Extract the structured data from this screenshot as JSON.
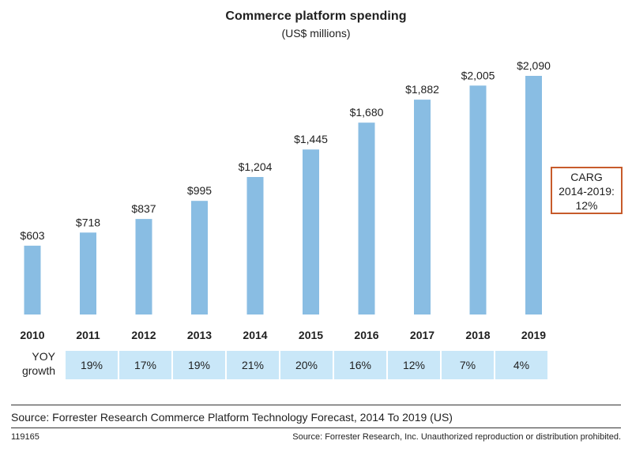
{
  "chart_data": {
    "type": "bar",
    "title": "Commerce platform spending",
    "subtitle": "(US$ millions)",
    "categories": [
      "2010",
      "2011",
      "2012",
      "2013",
      "2014",
      "2015",
      "2016",
      "2017",
      "2018",
      "2019"
    ],
    "values": [
      603,
      718,
      837,
      995,
      1204,
      1445,
      1680,
      1882,
      2005,
      2090
    ],
    "value_labels": [
      "$603",
      "$718",
      "$837",
      "$995",
      "$1,204",
      "$1,445",
      "$1,680",
      "$1,882",
      "$2,005",
      "$2,090"
    ],
    "ylim": [
      0,
      2090
    ],
    "bar_color": "#89bde3",
    "grid": false,
    "legend": "none",
    "yoy_growth": {
      "label_line1": "YOY",
      "label_line2": "growth",
      "values": [
        "19%",
        "17%",
        "19%",
        "21%",
        "20%",
        "16%",
        "12%",
        "7%",
        "4%"
      ],
      "cell_color": "#c9e7f8"
    },
    "annotation": {
      "line1": "CARG",
      "line2": "2014-2019:",
      "line3": "12%",
      "border_color": "#c75b2b"
    }
  },
  "source": "Source: Forrester Research Commerce Platform Technology Forecast, 2014 To 2019 (US)",
  "footer": {
    "id": "119165",
    "note": "Source: Forrester Research, Inc. Unauthorized reproduction or distribution prohibited."
  }
}
